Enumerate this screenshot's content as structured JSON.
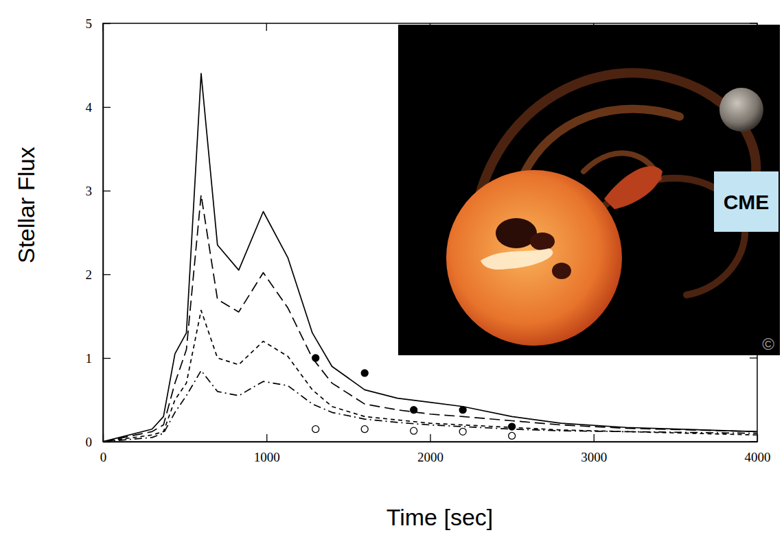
{
  "chart_data": {
    "type": "line",
    "x_label": "Time [sec]",
    "y_label": "Stellar Flux",
    "xlim": [
      0,
      4000
    ],
    "ylim": [
      0,
      5
    ],
    "xticks": [
      0,
      1000,
      2000,
      3000,
      4000
    ],
    "yticks": [
      0,
      1,
      2,
      3,
      4,
      5
    ],
    "grid": false,
    "x": [
      0,
      300,
      370,
      440,
      510,
      600,
      700,
      830,
      980,
      1130,
      1280,
      1400,
      1600,
      1800,
      2000,
      2200,
      2500,
      2800,
      3200,
      4000
    ],
    "series": [
      {
        "type": "line",
        "color": "#000000",
        "line_style": "solid",
        "values": [
          0,
          0.15,
          0.3,
          1.05,
          1.3,
          4.4,
          2.35,
          2.05,
          2.75,
          2.2,
          1.3,
          0.9,
          0.62,
          0.52,
          0.47,
          0.42,
          0.3,
          0.22,
          0.17,
          0.12
        ]
      },
      {
        "type": "line",
        "color": "#000000",
        "line_style": "dashed",
        "values": [
          0,
          0.12,
          0.2,
          0.7,
          1.1,
          2.95,
          1.7,
          1.55,
          2.02,
          1.6,
          1.0,
          0.7,
          0.45,
          0.38,
          0.33,
          0.3,
          0.25,
          0.2,
          0.16,
          0.12
        ]
      },
      {
        "type": "line",
        "color": "#000000",
        "line_style": "short_dashed",
        "values": [
          0,
          0.08,
          0.12,
          0.5,
          0.7,
          1.57,
          1.0,
          0.92,
          1.2,
          1.02,
          0.62,
          0.42,
          0.3,
          0.26,
          0.22,
          0.2,
          0.17,
          0.14,
          0.12,
          0.08
        ]
      },
      {
        "type": "line",
        "color": "#000000",
        "line_style": "dash_dot",
        "values": [
          0,
          0.05,
          0.1,
          0.35,
          0.55,
          0.85,
          0.6,
          0.55,
          0.72,
          0.67,
          0.45,
          0.35,
          0.27,
          0.23,
          0.2,
          0.18,
          0.15,
          0.13,
          0.12,
          0.1
        ]
      },
      {
        "type": "scatter",
        "color": "#000000",
        "marker": "filled_circle",
        "x": [
          1300,
          1600,
          1900,
          2200,
          2500
        ],
        "values": [
          1.0,
          0.82,
          0.38,
          0.38,
          0.18
        ]
      },
      {
        "type": "scatter",
        "color": "#000000",
        "marker": "open_circle",
        "x": [
          1300,
          1600,
          1900,
          2200,
          2500
        ],
        "values": [
          0.15,
          0.15,
          0.13,
          0.12,
          0.07
        ]
      }
    ],
    "annotations": [
      {
        "text": "CME"
      },
      {
        "text": "©"
      }
    ]
  }
}
